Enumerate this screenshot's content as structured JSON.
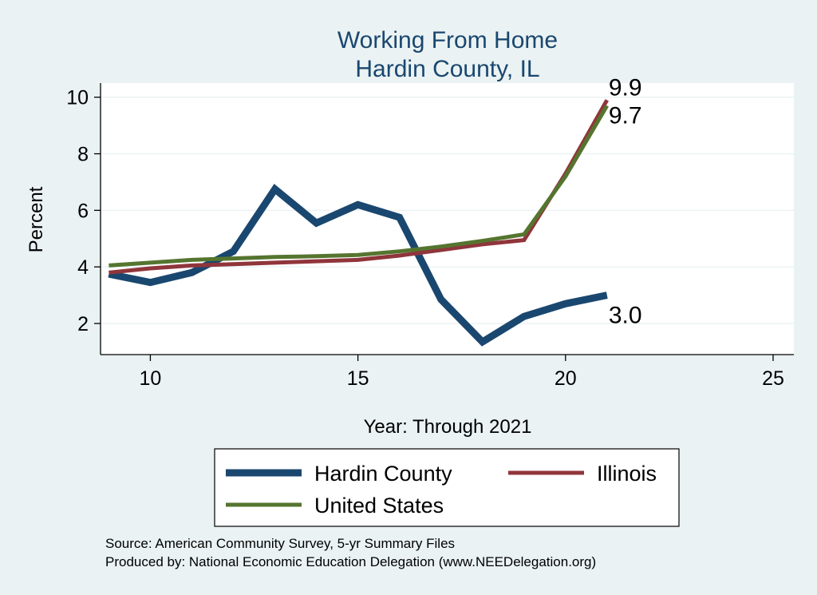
{
  "chart_data": {
    "type": "line",
    "title": [
      "Working From Home",
      "Hardin County, IL"
    ],
    "xlabel": "Year: Through 2021",
    "ylabel": "Percent",
    "xlim": [
      8.8,
      25.5
    ],
    "ylim": [
      0.9,
      10.5
    ],
    "xticks": [
      10,
      15,
      20,
      25
    ],
    "yticks": [
      2,
      4,
      6,
      8,
      10
    ],
    "grid": true,
    "legend_position": "bottom",
    "x": [
      9,
      10,
      11,
      12,
      13,
      14,
      15,
      16,
      17,
      18,
      19,
      20,
      21
    ],
    "series": [
      {
        "name": "Hardin County",
        "color": "#1a476f",
        "width": 9,
        "values": [
          3.75,
          3.45,
          3.8,
          4.55,
          6.75,
          5.55,
          6.2,
          5.75,
          2.85,
          1.35,
          2.25,
          2.7,
          3.0
        ]
      },
      {
        "name": "Illinois",
        "color": "#90353b",
        "width": 5,
        "values": [
          3.8,
          3.95,
          4.05,
          4.1,
          4.15,
          4.2,
          4.25,
          4.4,
          4.6,
          4.8,
          4.95,
          7.3,
          9.9
        ]
      },
      {
        "name": "United States",
        "color": "#55752f",
        "width": 5,
        "values": [
          4.05,
          4.15,
          4.25,
          4.3,
          4.35,
          4.38,
          4.42,
          4.55,
          4.72,
          4.92,
          5.15,
          7.2,
          9.7
        ]
      }
    ],
    "end_labels": [
      {
        "text": "9.9"
      },
      {
        "text": "9.7"
      },
      {
        "text": "3.0"
      }
    ]
  },
  "legend": {
    "items": [
      {
        "label": "Hardin County",
        "color": "#1a476f"
      },
      {
        "label": "Illinois",
        "color": "#90353b"
      },
      {
        "label": "United States",
        "color": "#55752f"
      }
    ]
  },
  "notes": {
    "source": "Source: American Community Survey, 5-yr Summary Files",
    "produced": "Produced by: National Economic Education Delegation (www.NEEDelegation.org)"
  }
}
